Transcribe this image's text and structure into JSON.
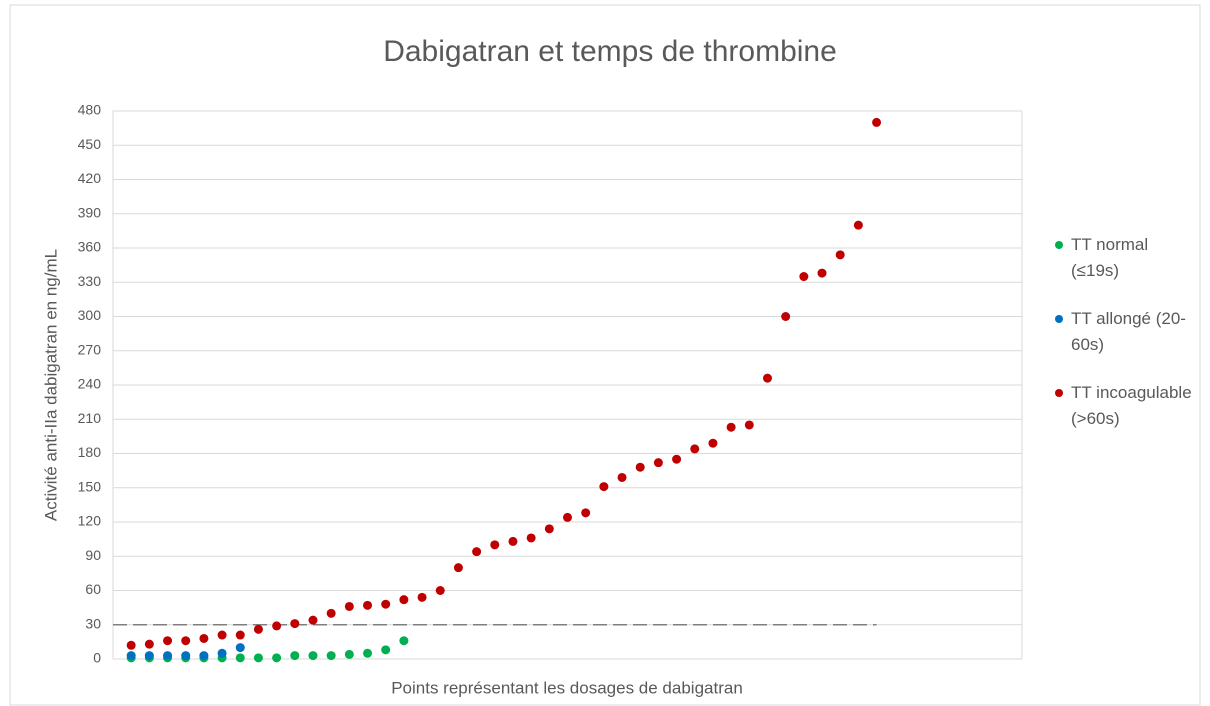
{
  "chart_data": {
    "type": "scatter",
    "title": "Dabigatran et temps de thrombine",
    "xlabel": "Points représentant les dosages de dabigatran",
    "ylabel": "Activité anti-IIa dabigatran en ng/mL",
    "xlim": [
      0,
      50
    ],
    "ylim": [
      0,
      480
    ],
    "yticks": [
      0,
      30,
      60,
      90,
      120,
      150,
      180,
      210,
      240,
      270,
      300,
      330,
      360,
      390,
      420,
      450,
      480
    ],
    "grid": true,
    "legend": "right",
    "reference_line": {
      "value": 30,
      "color": "#7f7f7f"
    },
    "series": [
      {
        "name": "TT normal (≤19s)",
        "color": "#00b050",
        "x": [
          1,
          2,
          3,
          4,
          5,
          6,
          7,
          8,
          9,
          10,
          11,
          12,
          13,
          14,
          15,
          16
        ],
        "values": [
          1,
          1,
          1,
          1,
          1,
          1,
          1,
          1,
          1,
          3,
          3,
          3,
          4,
          5,
          8,
          16
        ]
      },
      {
        "name": "TT allongé (20-60s)",
        "color": "#0070c0",
        "x": [
          1,
          2,
          3,
          4,
          5,
          6,
          7
        ],
        "values": [
          3,
          3,
          3,
          3,
          3,
          5,
          10
        ]
      },
      {
        "name": "TT incoagulable (>60s)",
        "color": "#c00000",
        "x": [
          1,
          2,
          3,
          4,
          5,
          6,
          7,
          8,
          9,
          10,
          11,
          12,
          13,
          14,
          15,
          16,
          17,
          18,
          19,
          20,
          21,
          22,
          23,
          24,
          25,
          26,
          27,
          28,
          29,
          30,
          31,
          32,
          33,
          34,
          35,
          36,
          37,
          38,
          39,
          40,
          41,
          42
        ],
        "values": [
          12,
          13,
          16,
          16,
          18,
          21,
          21,
          26,
          29,
          31,
          34,
          40,
          46,
          47,
          48,
          52,
          54,
          60,
          80,
          94,
          100,
          103,
          106,
          114,
          124,
          128,
          151,
          159,
          168,
          172,
          175,
          184,
          189,
          203,
          205,
          246,
          300,
          335,
          338,
          354,
          380,
          470
        ]
      }
    ]
  }
}
